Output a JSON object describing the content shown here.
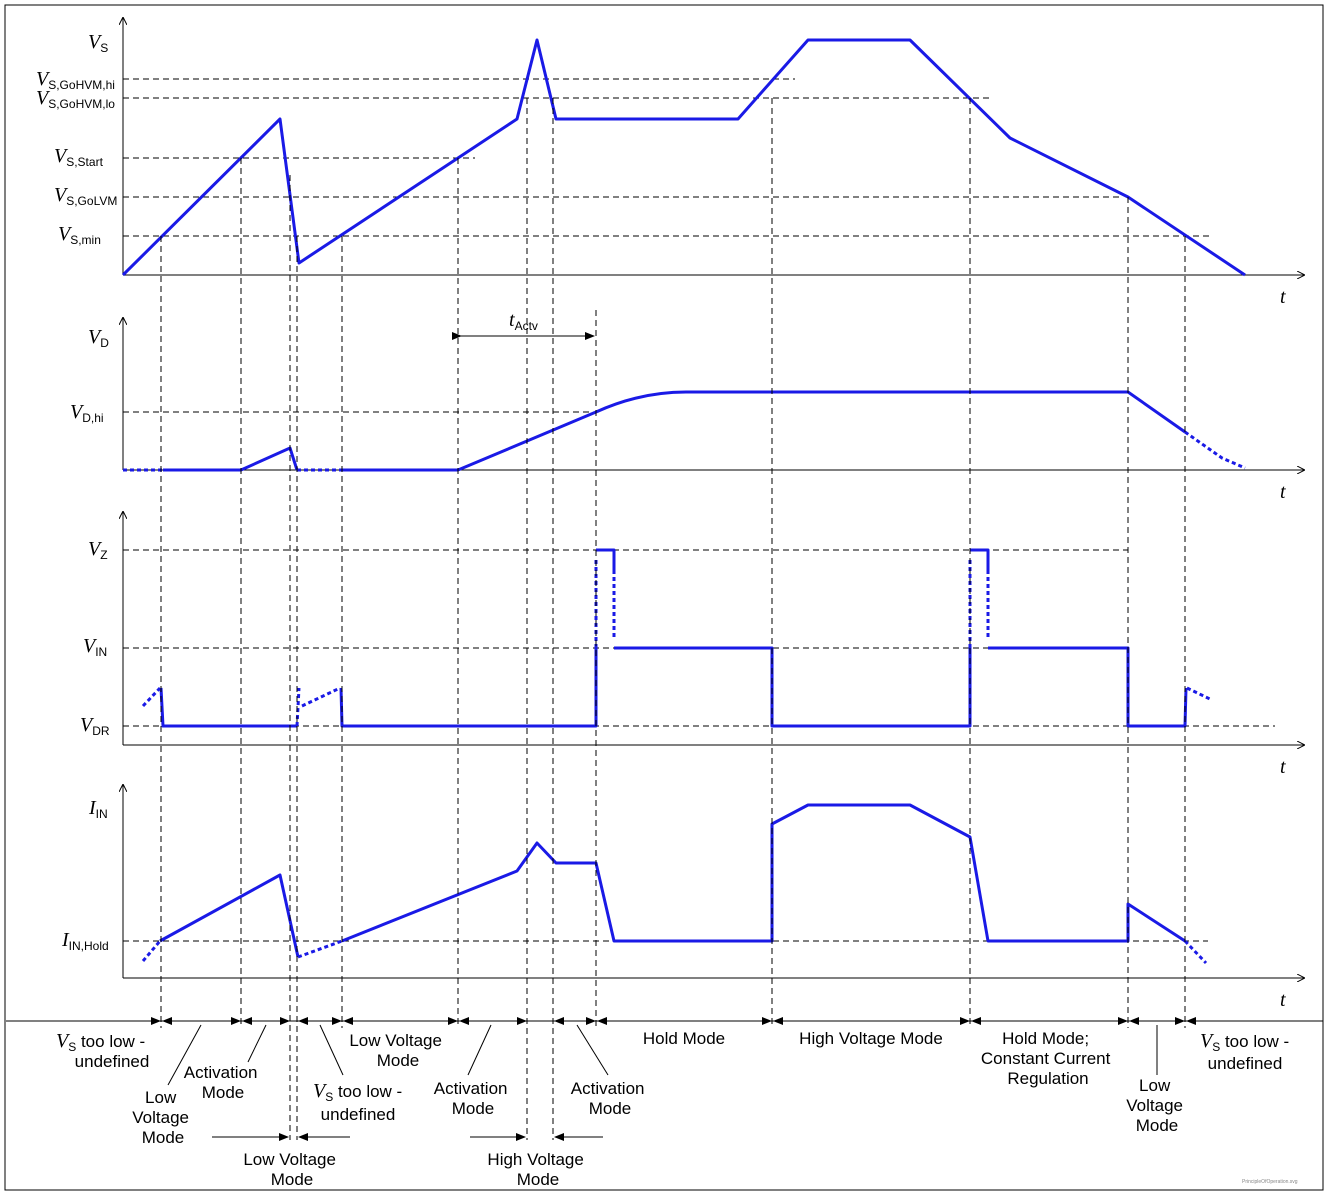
{
  "axes": {
    "vs": {
      "symbol": "V",
      "sub": "S"
    },
    "vd": {
      "symbol": "V",
      "sub": "D"
    },
    "vz": {
      "symbol": "V",
      "sub": "Z"
    },
    "iin": {
      "symbol": "I",
      "sub": "IN"
    },
    "time": "t"
  },
  "levels": {
    "vs_gohvm_hi": {
      "symbol": "V",
      "sub": "S,GoHVM,hi"
    },
    "vs_gohvm_lo": {
      "symbol": "V",
      "sub": "S,GoHVM,lo"
    },
    "vs_start": {
      "symbol": "V",
      "sub": "S,Start"
    },
    "vs_golvm": {
      "symbol": "V",
      "sub": "S,GoLVM"
    },
    "vs_min": {
      "symbol": "V",
      "sub": "S,min"
    },
    "vd_hi": {
      "symbol": "V",
      "sub": "D,hi"
    },
    "vin": {
      "symbol": "V",
      "sub": "IN"
    },
    "vdr": {
      "symbol": "V",
      "sub": "DR"
    },
    "iin_hold": {
      "symbol": "I",
      "sub": "IN,Hold"
    }
  },
  "t_actv": {
    "symbol": "t",
    "sub": "Actv"
  },
  "modes": {
    "undef1": {
      "pre": "V",
      "sub": "S",
      "post": " too low -",
      "line2": "undefined"
    },
    "lvm1": [
      "Low",
      "Voltage",
      "Mode"
    ],
    "act1": [
      "Activation",
      "Mode"
    ],
    "undef2": {
      "pre": "V",
      "sub": "S",
      "post": " too low -",
      "line2": "undefined"
    },
    "lvm2": [
      "Low Voltage",
      "Mode"
    ],
    "lvm3": [
      "Low Voltage",
      "Mode"
    ],
    "act2": [
      "Activation",
      "Mode"
    ],
    "hvm1": [
      "High Voltage",
      "Mode"
    ],
    "act3": [
      "Activation",
      "Mode"
    ],
    "hold1": "Hold Mode",
    "hvm2": "High Voltage Mode",
    "hold2": [
      "Hold Mode;",
      "Constant Current",
      "Regulation"
    ],
    "lvm4": [
      "Low",
      "Voltage",
      "Mode"
    ],
    "undef3": {
      "pre": "V",
      "sub": "S",
      "post": " too low -",
      "line2": "undefined"
    }
  },
  "watermark": "PrincipleOfOperation.svg",
  "colors": {
    "waveform": "#1a1ae6",
    "axis": "#000000"
  }
}
